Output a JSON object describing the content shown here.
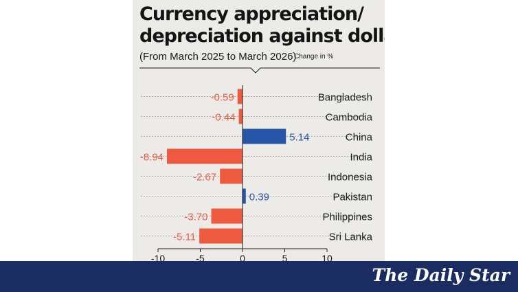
{
  "chart_data": {
    "type": "bar",
    "orientation": "horizontal",
    "title": [
      "Currency appreciation/",
      "depreciation against dollar"
    ],
    "subtitle": "(From March 2025 to March 2026)",
    "unit_label": "Change in %",
    "categories": [
      "Bangladesh",
      "Cambodia",
      "China",
      "India",
      "Indonesia",
      "Pakistan",
      "Philippines",
      "Sri Lanka"
    ],
    "values": [
      -0.59,
      -0.44,
      5.14,
      -8.94,
      -2.67,
      0.39,
      -3.7,
      -5.11
    ],
    "value_labels": [
      "-0.59",
      "-0.44",
      "5.14",
      "-8.94",
      "-2.67",
      "0.39",
      "-3.70",
      "-5.11"
    ],
    "xlim": [
      -10,
      10
    ],
    "x_ticks": [
      -10,
      -5,
      0,
      5,
      10
    ],
    "colors": {
      "positive": "#2756a8",
      "negative": "#ee5a3f",
      "grid": "#a8a8a8"
    },
    "grid": true
  },
  "footer": {
    "brand": "The Daily Star"
  }
}
